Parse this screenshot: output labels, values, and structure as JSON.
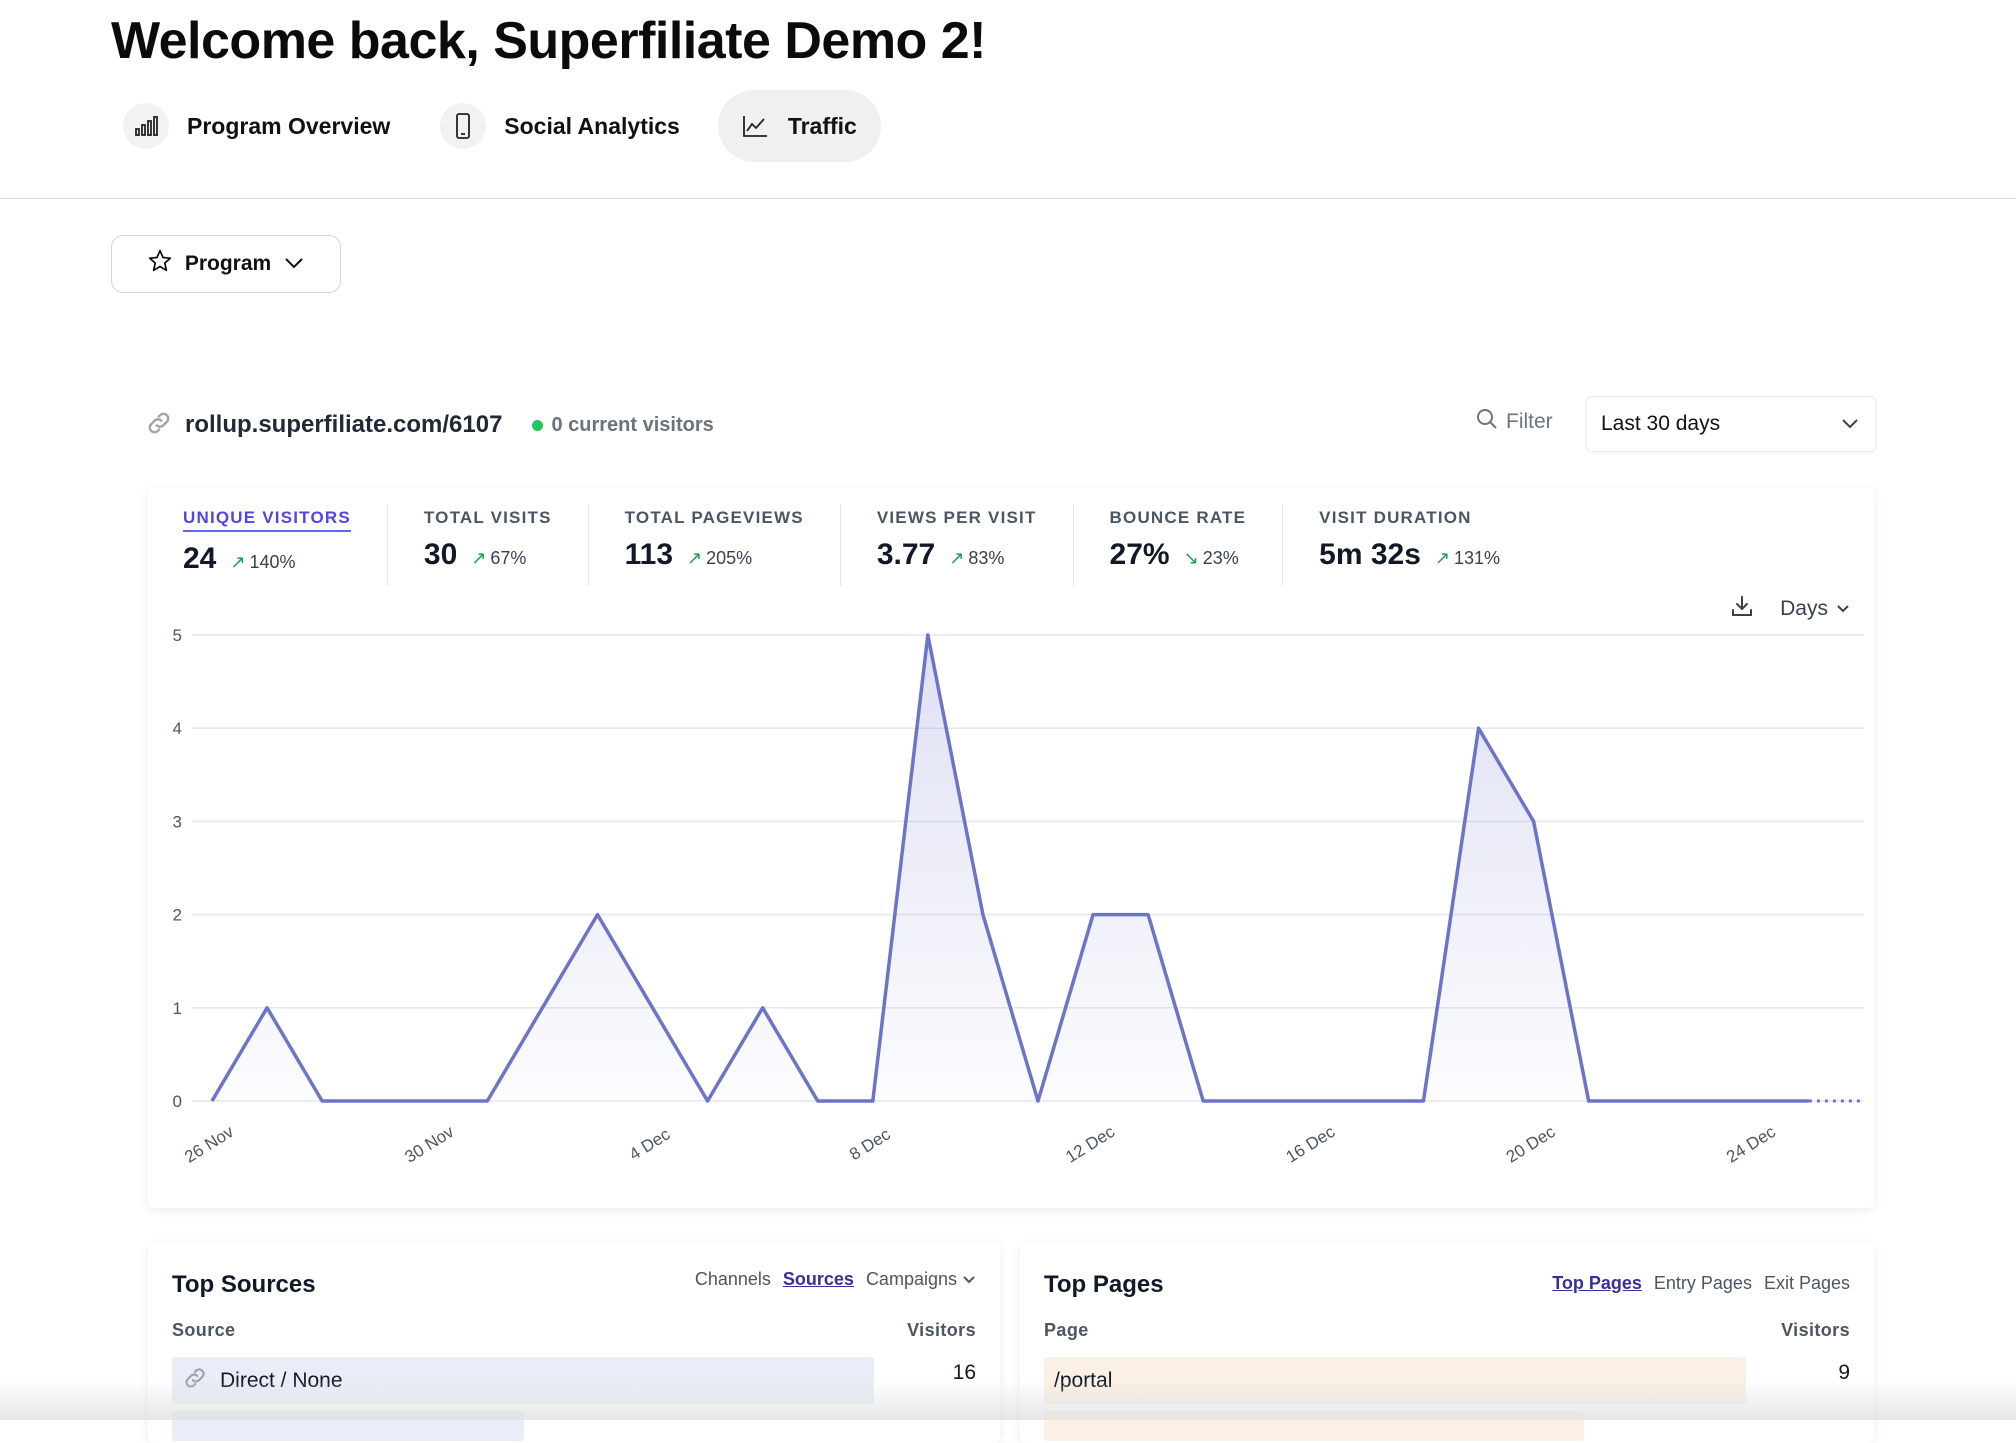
{
  "header": {
    "welcome": "Welcome back, Superfiliate Demo 2!"
  },
  "tabs": [
    {
      "label": "Program Overview",
      "icon": "bar-chart-icon"
    },
    {
      "label": "Social Analytics",
      "icon": "phone-icon"
    },
    {
      "label": "Traffic",
      "icon": "trending-up-icon",
      "active": true
    }
  ],
  "program_filter": {
    "label": "Program",
    "icon": "star-icon"
  },
  "site": {
    "url": "rollup.superfiliate.com/6107",
    "current_visitors": "0 current visitors"
  },
  "controls": {
    "filter_label": "Filter",
    "date_range": "Last 30 days",
    "interval": "Days"
  },
  "stats": [
    {
      "label": "UNIQUE VISITORS",
      "value": "24",
      "change": "140%",
      "direction": "up",
      "active": true
    },
    {
      "label": "TOTAL VISITS",
      "value": "30",
      "change": "67%",
      "direction": "up"
    },
    {
      "label": "TOTAL PAGEVIEWS",
      "value": "113",
      "change": "205%",
      "direction": "up"
    },
    {
      "label": "VIEWS PER VISIT",
      "value": "3.77",
      "change": "83%",
      "direction": "up"
    },
    {
      "label": "BOUNCE RATE",
      "value": "27%",
      "change": "23%",
      "direction": "down"
    },
    {
      "label": "VISIT DURATION",
      "value": "5m 32s",
      "change": "131%",
      "direction": "up"
    }
  ],
  "chart_data": {
    "type": "area",
    "x": [
      "26 Nov",
      "27 Nov",
      "28 Nov",
      "29 Nov",
      "30 Nov",
      "1 Dec",
      "2 Dec",
      "3 Dec",
      "4 Dec",
      "5 Dec",
      "6 Dec",
      "7 Dec",
      "8 Dec",
      "9 Dec",
      "10 Dec",
      "11 Dec",
      "12 Dec",
      "13 Dec",
      "14 Dec",
      "15 Dec",
      "16 Dec",
      "17 Dec",
      "18 Dec",
      "19 Dec",
      "20 Dec",
      "21 Dec",
      "22 Dec",
      "23 Dec",
      "24 Dec",
      "25 Dec",
      "26 Dec"
    ],
    "x_tick_labels": [
      "26 Nov",
      "30 Nov",
      "4 Dec",
      "8 Dec",
      "12 Dec",
      "16 Dec",
      "20 Dec",
      "24 Dec"
    ],
    "series": [
      {
        "values": [
          0,
          1,
          0,
          0,
          0,
          0,
          1,
          2,
          1,
          0,
          1,
          0,
          0,
          5,
          2,
          0,
          2,
          2,
          0,
          0,
          0,
          0,
          0,
          4,
          3,
          0,
          0,
          0,
          0,
          0,
          0
        ]
      }
    ],
    "dashed_from_index": 29,
    "ylim": [
      0,
      5
    ],
    "yticks": [
      0,
      1,
      2,
      3,
      4,
      5
    ],
    "grid": true,
    "color": "#6b74c9"
  },
  "top_sources": {
    "title": "Top Sources",
    "tabs": [
      "Channels",
      "Sources",
      "Campaigns"
    ],
    "selected_tab": "Sources",
    "col_source": "Source",
    "col_visitors": "Visitors",
    "rows": [
      {
        "label": "Direct / None",
        "visitors": "16",
        "fraction": 1.0
      }
    ]
  },
  "top_pages": {
    "title": "Top Pages",
    "tabs": [
      "Top Pages",
      "Entry Pages",
      "Exit Pages"
    ],
    "selected_tab": "Top Pages",
    "col_page": "Page",
    "col_visitors": "Visitors",
    "rows": [
      {
        "label": "/portal",
        "visitors": "9",
        "fraction": 1.0
      }
    ]
  }
}
